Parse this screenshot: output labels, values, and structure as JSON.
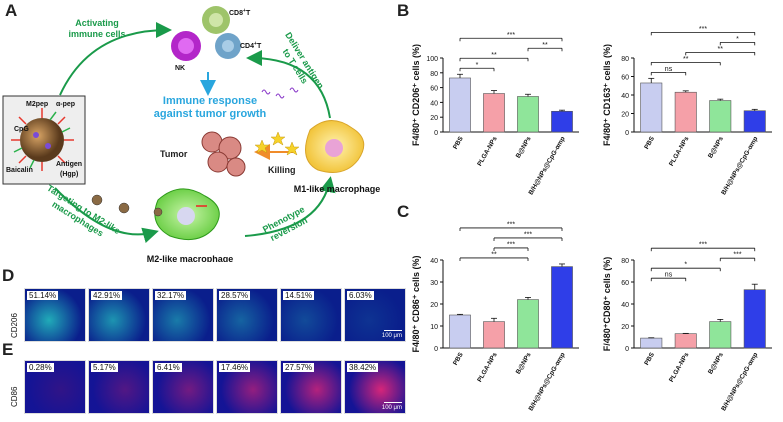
{
  "panel_labels": {
    "A": "A",
    "B": "B",
    "C": "C",
    "D": "D",
    "E": "E"
  },
  "schematic": {
    "activating": [
      "Activating",
      "immune cells"
    ],
    "deliver": [
      "Deliver antigen",
      "to T cells"
    ],
    "immune_response": [
      "Immune response",
      "against tumor growth"
    ],
    "tumor": "Tumor",
    "killing": "Killing",
    "m1": "M1-like macrophage",
    "m2": "M2-like macrophage",
    "targeting": [
      "Targeting to M2-like",
      "macrophages"
    ],
    "phenotype": [
      "Phenotype",
      "reversion"
    ],
    "nk": "NK",
    "cd8": "CD8",
    "cd4": "CD4",
    "t": "T",
    "plus": "+",
    "np_labels": {
      "m2pep": "M2pep",
      "alpha_pep": "α-pep",
      "cpg": "CpG",
      "baicalin": "Baicalin",
      "antigen": "Antigen",
      "hgp": "(Hgp)"
    }
  },
  "micrographs": {
    "row_d_label": "CD206",
    "row_e_label": "CD86",
    "scale": "100 μm",
    "row_d": [
      "51.14%",
      "42.91%",
      "32.17%",
      "28.57%",
      "14.51%",
      "6.03%"
    ],
    "row_e": [
      "0.28%",
      "5.17%",
      "6.41%",
      "17.46%",
      "27.57%",
      "38.42%"
    ]
  },
  "colors": {
    "green": "#1a9a4a",
    "blue": "#29a6de",
    "pbs": "#c8cdf0",
    "plga": "#f5a0a8",
    "bnps": "#8fe59a",
    "bh": "#2f3ee8"
  },
  "chart_data": [
    {
      "type": "bar",
      "id": "B1",
      "ylabel": "F4/80⁺ CD206⁺ cells (%)",
      "ylim": [
        0,
        100
      ],
      "yticks": [
        0,
        20,
        40,
        60,
        80,
        100
      ],
      "categories": [
        "PBS",
        "PLGA-NPs",
        "B@NPs",
        "B/H@NPs@CpG-αmp"
      ],
      "values": [
        73,
        52,
        48,
        28
      ],
      "errors": [
        5,
        4,
        3,
        1.5
      ],
      "sig": [
        {
          "a": 0,
          "b": 1,
          "label": "*"
        },
        {
          "a": 0,
          "b": 2,
          "label": "**"
        },
        {
          "a": 2,
          "b": 3,
          "label": "**"
        },
        {
          "a": 0,
          "b": 3,
          "label": "***"
        }
      ]
    },
    {
      "type": "bar",
      "id": "B2",
      "ylabel": "F4/80⁺ CD163⁺ cells (%)",
      "ylim": [
        0,
        80
      ],
      "yticks": [
        0,
        20,
        40,
        60,
        80
      ],
      "categories": [
        "PBS",
        "PLGA-NPs",
        "B@NPs",
        "B/H@NPs@CpG-αmp"
      ],
      "values": [
        53,
        43,
        34,
        23
      ],
      "errors": [
        5,
        1.5,
        1.5,
        1.5
      ],
      "sig": [
        {
          "a": 0,
          "b": 1,
          "label": "ns"
        },
        {
          "a": 0,
          "b": 2,
          "label": "**"
        },
        {
          "a": 1,
          "b": 3,
          "label": "**"
        },
        {
          "a": 2,
          "b": 3,
          "label": "*"
        },
        {
          "a": 0,
          "b": 3,
          "label": "***"
        }
      ]
    },
    {
      "type": "bar",
      "id": "C1",
      "ylabel": "F4/80⁺ CD86⁺ cells (%)",
      "ylim": [
        0,
        40
      ],
      "yticks": [
        0,
        10,
        20,
        30,
        40
      ],
      "categories": [
        "PBS",
        "PLGA-NPs",
        "B@NPs",
        "B/H@NPs@CpG-αmp"
      ],
      "values": [
        15,
        12,
        22,
        37
      ],
      "errors": [
        0.3,
        1.5,
        1,
        1.2
      ],
      "sig": [
        {
          "a": 0,
          "b": 2,
          "label": "**"
        },
        {
          "a": 1,
          "b": 2,
          "label": "***"
        },
        {
          "a": 1,
          "b": 3,
          "label": "***"
        },
        {
          "a": 0,
          "b": 3,
          "label": "***"
        }
      ]
    },
    {
      "type": "bar",
      "id": "C2",
      "ylabel": "F/480⁺CD80⁺ cells (%)",
      "ylim": [
        0,
        80
      ],
      "yticks": [
        0,
        20,
        40,
        60,
        80
      ],
      "categories": [
        "PBS",
        "PLGA-NPs",
        "B@NPs",
        "B/H@NPs@CpG-αmp"
      ],
      "values": [
        9,
        13,
        24,
        53
      ],
      "errors": [
        0.3,
        0.3,
        2,
        5
      ],
      "sig": [
        {
          "a": 0,
          "b": 1,
          "label": "ns"
        },
        {
          "a": 0,
          "b": 2,
          "label": "*"
        },
        {
          "a": 2,
          "b": 3,
          "label": "***"
        },
        {
          "a": 0,
          "b": 3,
          "label": "***"
        }
      ]
    }
  ]
}
